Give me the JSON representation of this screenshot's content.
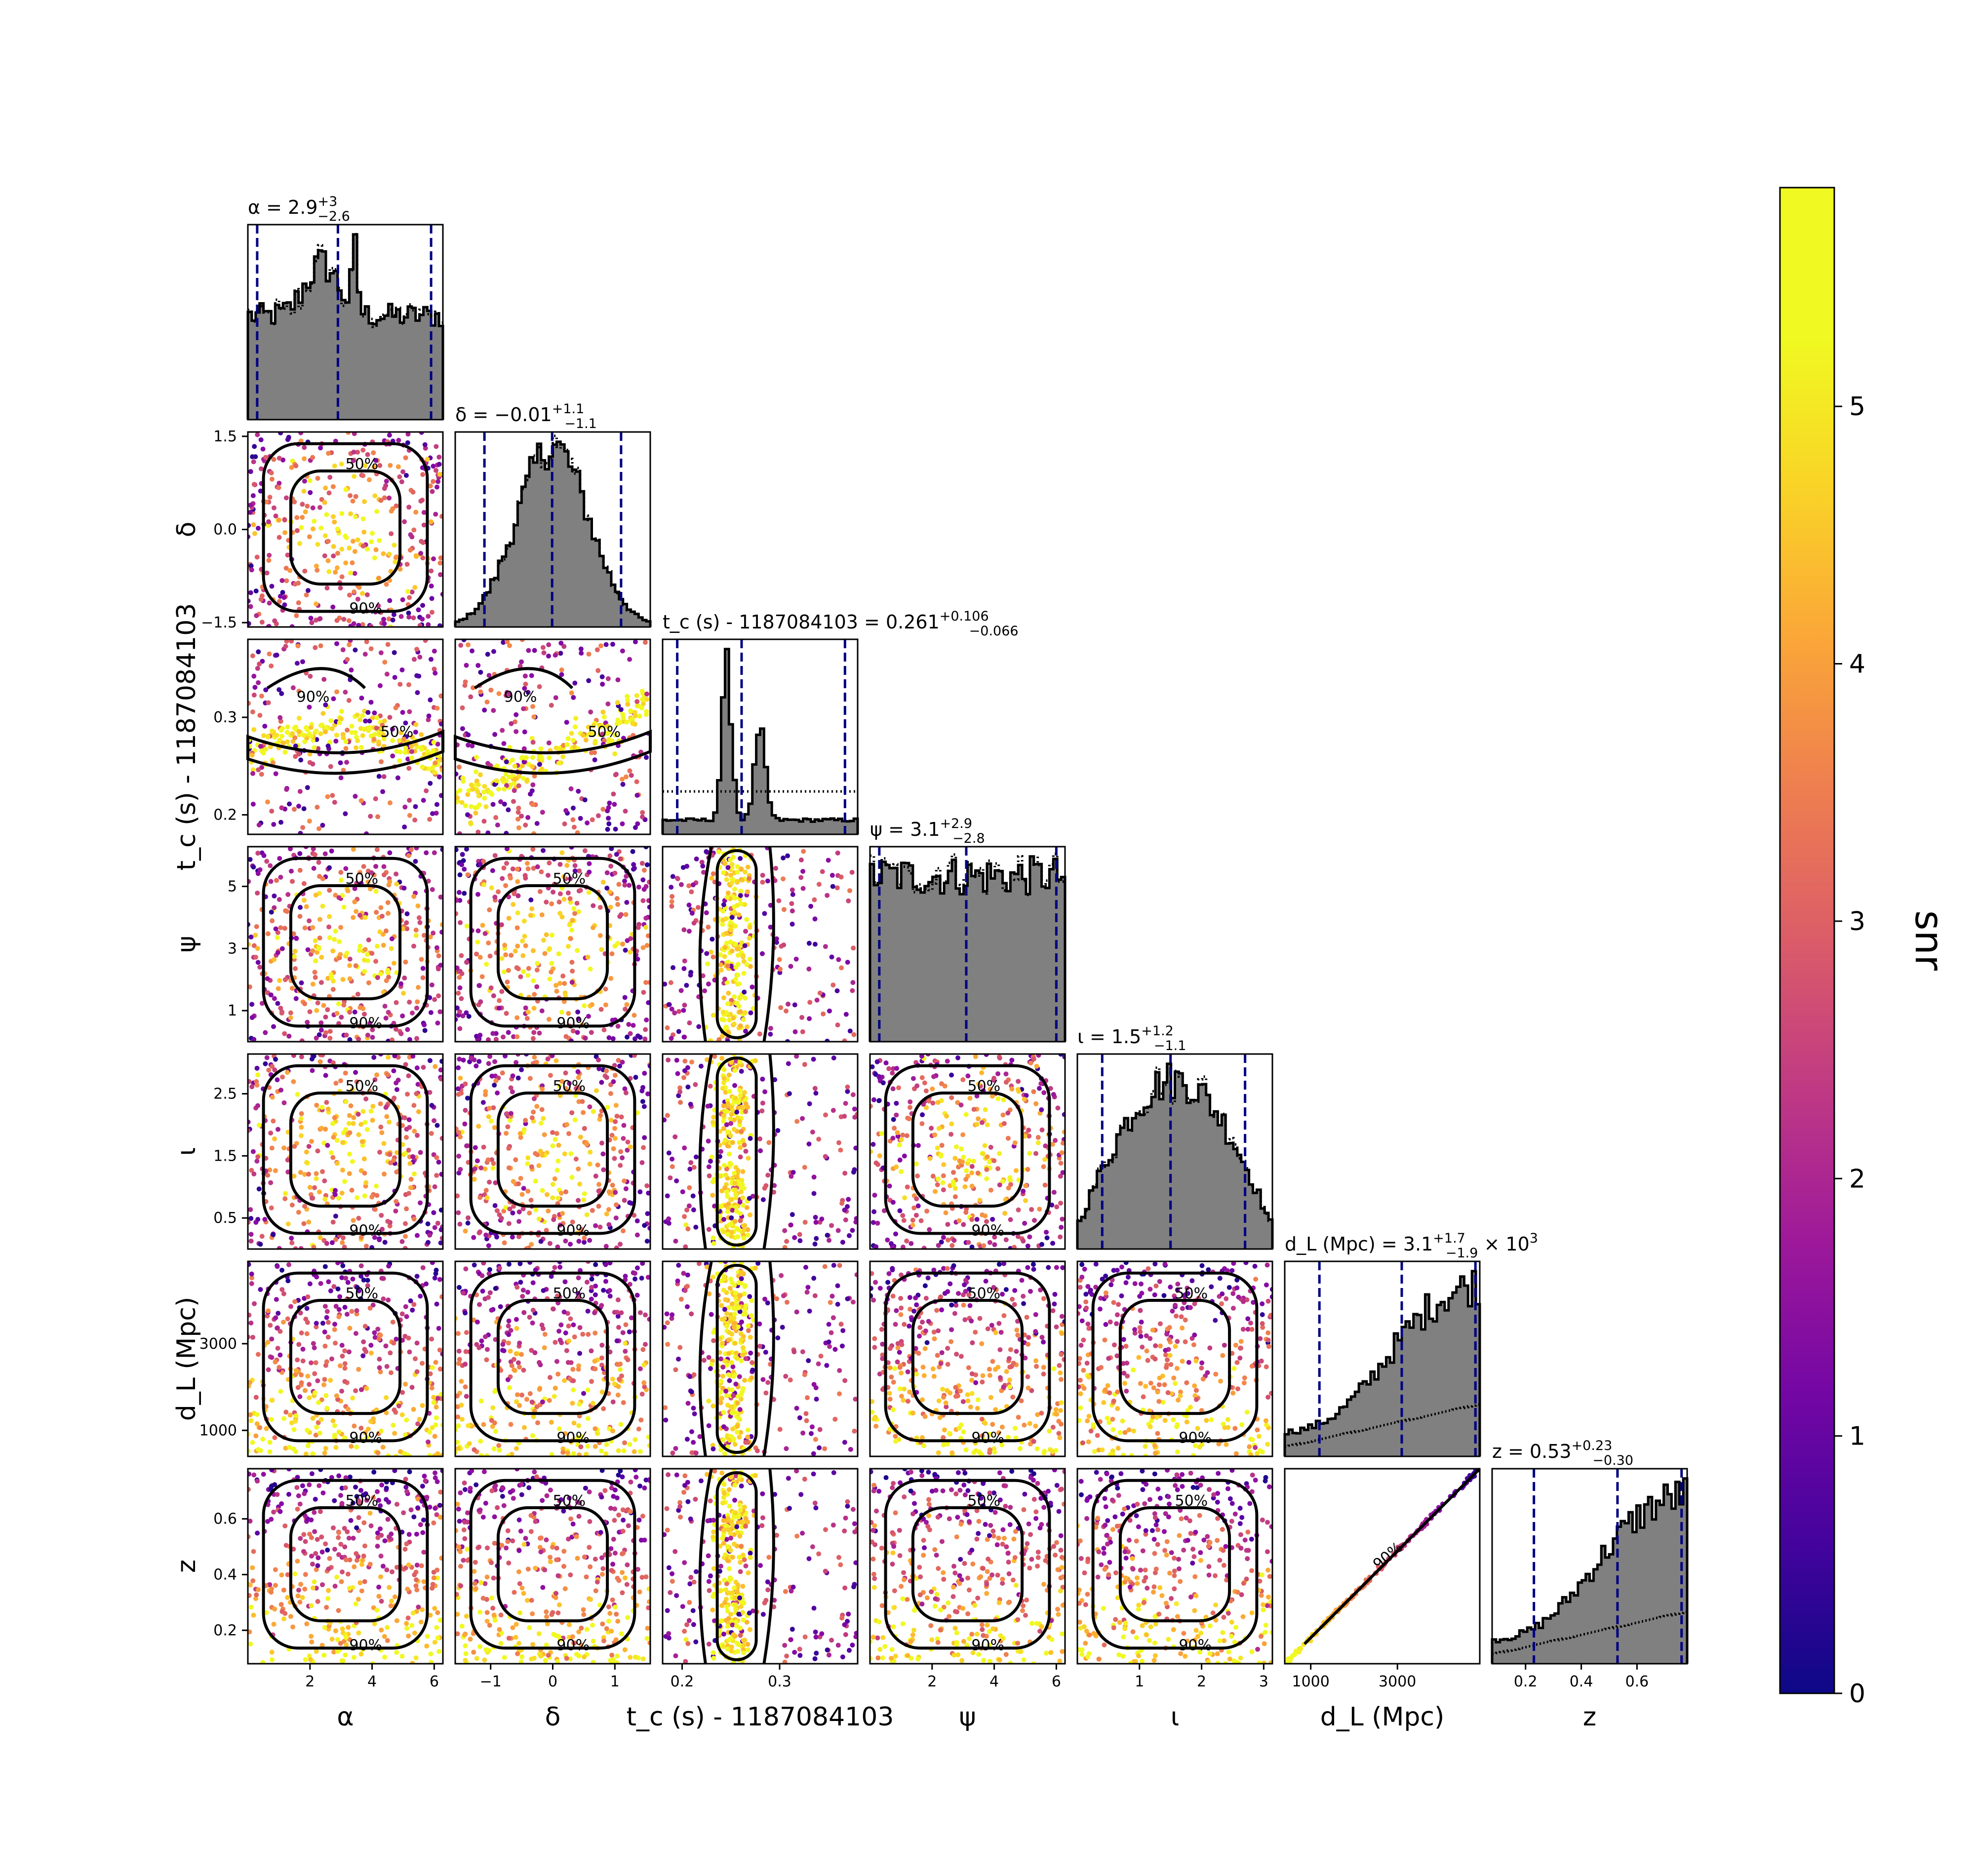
{
  "chart_data": {
    "type": "scatter",
    "subtype": "corner-plot",
    "colorbar": {
      "label": "snr",
      "range": [
        0,
        5.85
      ],
      "ticks": [
        0,
        1,
        2,
        3,
        4,
        5
      ],
      "colormap": "plasma"
    },
    "contour_labels": [
      "50%",
      "90%"
    ],
    "parameters": [
      {
        "name": "alpha",
        "label": "α",
        "range": [
          0,
          6.28
        ],
        "ticks": [
          2,
          4,
          6
        ],
        "tick_labels": [
          "2",
          "4",
          "6"
        ],
        "y_ticks": [],
        "y_tick_labels": [],
        "title": "α = 2.9",
        "title_sup": "+3",
        "title_sub": "−2.6",
        "quantiles": [
          0.3,
          2.9,
          5.9
        ],
        "hist_shape": "alpha"
      },
      {
        "name": "delta",
        "label": "δ",
        "range": [
          -1.57,
          1.57
        ],
        "ticks": [
          -1,
          0,
          1
        ],
        "tick_labels": [
          "−1",
          "0",
          "1"
        ],
        "y_ticks": [
          -1.5,
          0,
          1.5
        ],
        "y_tick_labels": [
          "−1.5",
          "0.0",
          "1.5"
        ],
        "title": "δ = −0.01",
        "title_sup": "+1.1",
        "title_sub": "−1.1",
        "quantiles": [
          -1.1,
          -0.01,
          1.1
        ],
        "hist_shape": "gauss"
      },
      {
        "name": "tc",
        "label": "t_c (s) - 1187084103",
        "range": [
          0.18,
          0.38
        ],
        "ticks": [
          0.2,
          0.3
        ],
        "tick_labels": [
          "0.2",
          "0.3"
        ],
        "y_ticks": [
          0.2,
          0.3
        ],
        "y_tick_labels": [
          "0.2",
          "0.3"
        ],
        "title": "t_c (s) - 1187084103 = 0.261",
        "title_sup": "+0.106",
        "title_sub": "−0.066",
        "quantiles": [
          0.195,
          0.261,
          0.367
        ],
        "hist_shape": "peaked"
      },
      {
        "name": "psi",
        "label": "ψ",
        "range": [
          0,
          6.28
        ],
        "ticks": [
          2,
          4,
          6
        ],
        "tick_labels": [
          "2",
          "4",
          "6"
        ],
        "y_ticks": [
          1,
          3,
          5
        ],
        "y_tick_labels": [
          "1",
          "3",
          "5"
        ],
        "title": "ψ = 3.1",
        "title_sup": "+2.9",
        "title_sub": "−2.8",
        "quantiles": [
          0.3,
          3.1,
          6.0
        ],
        "hist_shape": "flat"
      },
      {
        "name": "iota",
        "label": "ι",
        "range": [
          0,
          3.14
        ],
        "ticks": [
          1,
          2,
          3
        ],
        "tick_labels": [
          "1",
          "2",
          "3"
        ],
        "y_ticks": [
          0.5,
          1.5,
          2.5
        ],
        "y_tick_labels": [
          "0.5",
          "1.5",
          "2.5"
        ],
        "title": "ι = 1.5",
        "title_sup": "+1.2",
        "title_sub": "−1.1",
        "quantiles": [
          0.4,
          1.5,
          2.7
        ],
        "hist_shape": "sine"
      },
      {
        "name": "dL",
        "label": "d_L (Mpc)",
        "range": [
          400,
          4900
        ],
        "ticks": [
          1000,
          3000
        ],
        "tick_labels": [
          "1000",
          "3000"
        ],
        "y_ticks": [
          1000,
          3000
        ],
        "y_tick_labels": [
          "1000",
          "3000"
        ],
        "title": "d_L (Mpc) = 3.1",
        "title_sup": "+1.7",
        "title_sub": "−1.9",
        "title_suffix": " × 10",
        "title_suffix_sup": "3",
        "quantiles": [
          1200,
          3100,
          4800
        ],
        "hist_shape": "rising"
      },
      {
        "name": "z",
        "label": "z",
        "range": [
          0.08,
          0.78
        ],
        "ticks": [
          0.2,
          0.4,
          0.6
        ],
        "tick_labels": [
          "0.2",
          "0.4",
          "0.6"
        ],
        "y_ticks": [
          0.2,
          0.4,
          0.6
        ],
        "y_tick_labels": [
          "0.2",
          "0.4",
          "0.6"
        ],
        "title": "z = 0.53",
        "title_sup": "+0.23",
        "title_sub": "−0.30",
        "quantiles": [
          0.23,
          0.53,
          0.76
        ],
        "hist_shape": "rising"
      }
    ]
  }
}
